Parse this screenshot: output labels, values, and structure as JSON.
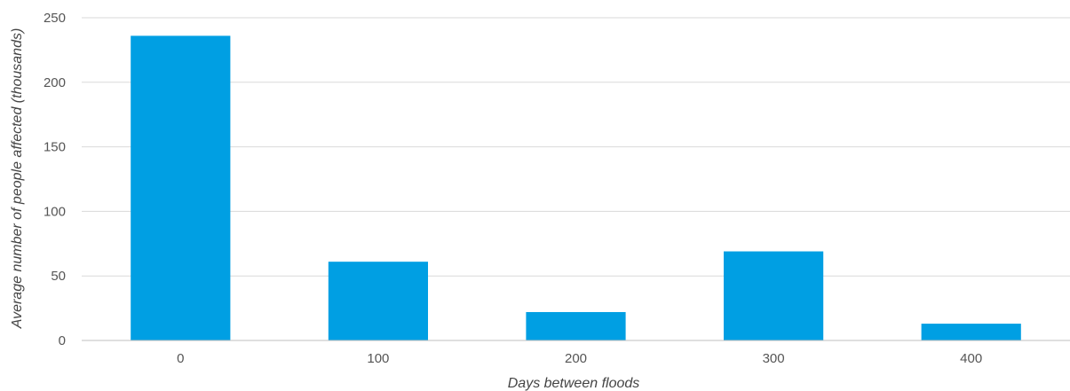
{
  "chart_data": {
    "type": "bar",
    "title": "",
    "xlabel": "Days between floods",
    "ylabel": "Average number of people affected (thousands)",
    "categories": [
      "0",
      "100",
      "200",
      "300",
      "400"
    ],
    "values": [
      236,
      61,
      22,
      69,
      13
    ],
    "ylim": [
      0,
      250
    ],
    "yticks": [
      0,
      50,
      100,
      150,
      200,
      250
    ],
    "grid": true,
    "legend": "none",
    "bar_color": "#009FE3",
    "grid_color": "#D9D9D9"
  }
}
